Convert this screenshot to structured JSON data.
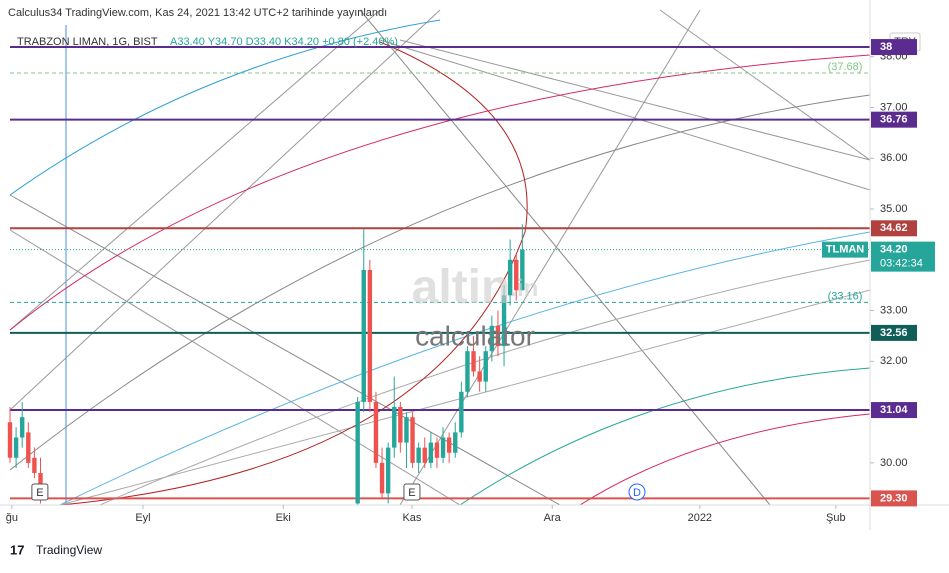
{
  "header": {
    "publisher": "Calculus34 TradingView.com, Kas 24, 2021 13:42 UTC+2 tarihinde yayınlandı",
    "symbol": "TRABZON LIMAN, 1G, BIST",
    "ohlc": "A33.40 Y34.70 D33.40 K34.20 +0.80 (+2.40%)",
    "currency": "TRY"
  },
  "watermark": {
    "brand": "altin",
    "suffix": ".in",
    "sub": "calculator"
  },
  "footer": {
    "logo": "TradingView"
  },
  "chart_data": {
    "type": "candlestick",
    "up_color": "#26a69a",
    "down_color": "#ef5350",
    "x": [
      0,
      1,
      2,
      3,
      4,
      5,
      57,
      58,
      59,
      60,
      61,
      62,
      63,
      64,
      65,
      66,
      67,
      68,
      69,
      70,
      71,
      72,
      73,
      74,
      75,
      76,
      77,
      78,
      79,
      80,
      81,
      82,
      83,
      84
    ],
    "open": [
      30.8,
      30.1,
      30.5,
      30.6,
      30.1,
      29.8,
      29.2,
      31.2,
      33.8,
      31.2,
      30.0,
      29.4,
      30.3,
      31.1,
      30.4,
      30.9,
      30.0,
      30.3,
      30.0,
      30.4,
      30.1,
      30.5,
      30.2,
      30.6,
      31.4,
      32.2,
      31.8,
      31.6,
      32.2,
      32.7,
      32.3,
      33.3,
      34.0,
      33.4
    ],
    "high": [
      31.1,
      30.7,
      31.2,
      30.8,
      30.3,
      30.1,
      31.3,
      34.6,
      34.0,
      31.4,
      30.3,
      30.4,
      31.7,
      31.2,
      31.0,
      31.0,
      30.4,
      30.5,
      30.6,
      30.5,
      30.7,
      30.6,
      30.8,
      31.6,
      32.3,
      32.5,
      32.1,
      32.3,
      32.9,
      33.0,
      33.5,
      34.4,
      34.1,
      34.7
    ],
    "low": [
      30.0,
      29.9,
      30.3,
      29.9,
      29.7,
      29.2,
      29.1,
      31.0,
      31.0,
      29.9,
      29.3,
      29.2,
      30.1,
      30.2,
      29.9,
      29.9,
      29.8,
      29.9,
      29.9,
      29.9,
      30.0,
      30.0,
      30.1,
      30.5,
      31.3,
      31.7,
      31.4,
      31.4,
      32.0,
      32.1,
      31.9,
      33.1,
      33.2,
      33.4
    ],
    "close": [
      30.1,
      30.5,
      30.9,
      30.0,
      29.8,
      29.4,
      31.2,
      33.8,
      31.2,
      30.0,
      29.4,
      30.3,
      31.1,
      30.4,
      30.9,
      30.0,
      30.3,
      30.0,
      30.4,
      30.1,
      30.5,
      30.2,
      30.6,
      31.4,
      32.2,
      31.8,
      31.6,
      32.2,
      32.7,
      32.3,
      33.3,
      34.0,
      33.4,
      34.2
    ],
    "xlim": [
      0,
      141
    ],
    "xticks": [
      {
        "value": 0.3,
        "label": "ğu"
      },
      {
        "value": 21.8,
        "label": "Eyl"
      },
      {
        "value": 44.8,
        "label": "Eki"
      },
      {
        "value": 65.9,
        "label": "Kas"
      },
      {
        "value": 88.9,
        "label": "Ara"
      },
      {
        "value": 113.1,
        "label": "2022"
      },
      {
        "value": 135.4,
        "label": "Şub"
      }
    ],
    "ylim": [
      29.17,
      38.92
    ],
    "yticks": [
      {
        "value": 30,
        "label": "30.00"
      },
      {
        "value": 32,
        "label": "32.00"
      },
      {
        "value": 33,
        "label": "33.00"
      },
      {
        "value": 35,
        "label": "35.00"
      },
      {
        "value": 36,
        "label": "36.00"
      },
      {
        "value": 37,
        "label": "37.00"
      },
      {
        "value": 38,
        "label": "38.00"
      }
    ],
    "grid": false,
    "horizontal_lines": [
      {
        "value": 38.19,
        "label": "38",
        "color": "#5b2c8f",
        "style": "solid"
      },
      {
        "value": 37.68,
        "label": "(37.68)",
        "color": "#81c784",
        "style": "dashed"
      },
      {
        "value": 36.76,
        "label": "36.76",
        "color": "#5b2c8f",
        "style": "solid"
      },
      {
        "value": 34.62,
        "label": "34.62",
        "color": "#b0413e",
        "style": "solid"
      },
      {
        "value": 33.16,
        "label": "(33.16)",
        "color": "#26a69a",
        "style": "dashed"
      },
      {
        "value": 32.56,
        "label": "32.56",
        "color": "#0f5e57",
        "style": "solid"
      },
      {
        "value": 31.04,
        "label": "31.04",
        "color": "#5b2c8f",
        "style": "solid"
      },
      {
        "value": 29.3,
        "label": "29.30",
        "color": "#d9534f",
        "style": "solid"
      }
    ],
    "current_price": {
      "symbol": "TLMAN",
      "value": 34.2,
      "label": "34.20",
      "countdown": "03:42:34",
      "color": "#26a69a"
    },
    "event_markers": [
      {
        "label": "E",
        "x": 4.9
      },
      {
        "label": "E",
        "x": 65.9
      },
      {
        "label": "D",
        "x": 102.8
      }
    ]
  }
}
